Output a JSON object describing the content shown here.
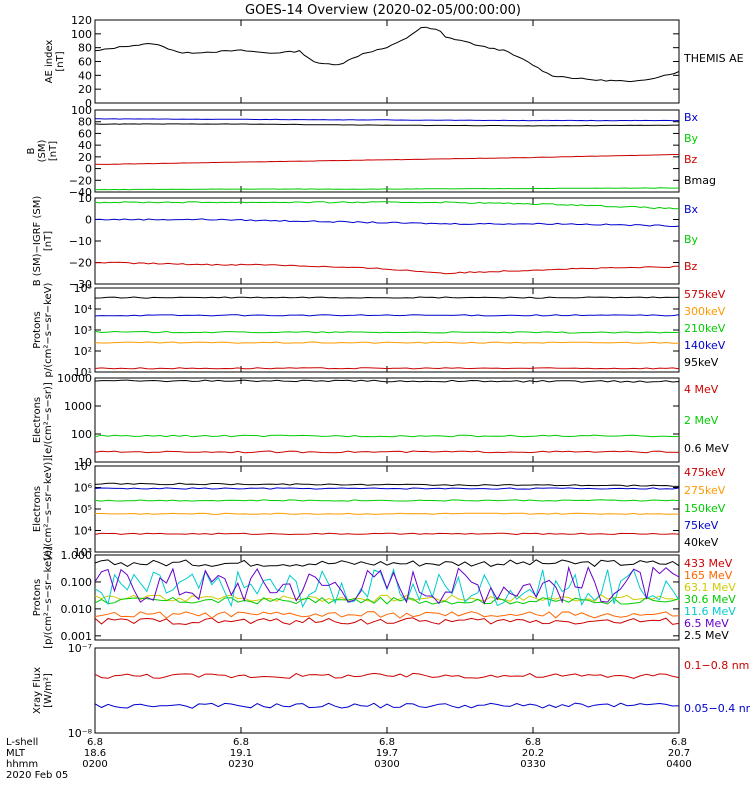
{
  "title": "GOES-14 Overview (2020-02-05/00:00:00)",
  "chart_data": [
    {
      "type": "line",
      "ylabel": [
        "AE index",
        "[nT]"
      ],
      "ylim": [
        0,
        120
      ],
      "yscale": "linear",
      "yticks": [
        "0",
        "20",
        "40",
        "60",
        "80",
        "100",
        "120"
      ],
      "series": [
        {
          "name": "THEMIS AE",
          "color": "#000000",
          "x": [
            0,
            0.05,
            0.1,
            0.15,
            0.2,
            0.25,
            0.3,
            0.35,
            0.38,
            0.42,
            0.46,
            0.5,
            0.53,
            0.56,
            0.59,
            0.6,
            0.63,
            0.66,
            0.7,
            0.74,
            0.78,
            0.82,
            0.86,
            0.9,
            0.92,
            0.96,
            1.0
          ],
          "y": [
            75,
            82,
            86,
            72,
            74,
            76,
            72,
            75,
            57,
            56,
            72,
            80,
            92,
            110,
            105,
            95,
            90,
            82,
            76,
            60,
            40,
            36,
            33,
            32,
            30,
            37,
            45
          ]
        }
      ]
    },
    {
      "type": "line",
      "ylabel": [
        "B",
        "(SM)",
        "[nT]"
      ],
      "ylim": [
        -40,
        100
      ],
      "yscale": "linear",
      "yticks": [
        "−40",
        "−20",
        "0",
        "20",
        "40",
        "60",
        "80",
        "100"
      ],
      "series": [
        {
          "name": "Bx",
          "color": "#0000cc",
          "x": [
            0,
            0.25,
            0.5,
            0.75,
            1.0
          ],
          "y": [
            85,
            84,
            83,
            82,
            82
          ]
        },
        {
          "name": "By",
          "color": "#00cc00",
          "x": [
            0,
            0.25,
            0.5,
            0.75,
            1.0
          ],
          "y": [
            -36,
            -35,
            -35,
            -34,
            -33
          ]
        },
        {
          "name": "Bz",
          "color": "#cc0000",
          "x": [
            0,
            0.25,
            0.5,
            0.75,
            1.0
          ],
          "y": [
            7,
            11,
            15,
            19,
            24
          ]
        },
        {
          "name": "Bmag",
          "color": "#000000",
          "x": [
            0,
            0.25,
            0.5,
            0.75,
            1.0
          ],
          "y": [
            76,
            76,
            74,
            73,
            74
          ]
        }
      ]
    },
    {
      "type": "line",
      "ylabel": [
        "B (SM)−IGRF (SM)",
        "[nT]"
      ],
      "ylim": [
        -30,
        10
      ],
      "yscale": "linear",
      "yticks": [
        "−30",
        "−20",
        "−10",
        "0",
        "10"
      ],
      "series": [
        {
          "name": "Bx",
          "color": "#0000cc",
          "x": [
            0,
            0.2,
            0.4,
            0.6,
            0.8,
            1.0
          ],
          "y": [
            0,
            0,
            -1,
            -2,
            -2,
            -3
          ]
        },
        {
          "name": "By",
          "color": "#00cc00",
          "x": [
            0,
            0.2,
            0.4,
            0.6,
            0.8,
            1.0
          ],
          "y": [
            8,
            8,
            8,
            8,
            7,
            5
          ]
        },
        {
          "name": "Bz",
          "color": "#cc0000",
          "x": [
            0,
            0.2,
            0.3,
            0.5,
            0.6,
            0.8,
            1.0
          ],
          "y": [
            -20,
            -21,
            -21,
            -23,
            -25,
            -23,
            -22
          ]
        }
      ]
    },
    {
      "type": "line",
      "ylabel": [
        "Protons",
        "p/(cm²−s−sr−keV)"
      ],
      "ylim": [
        10,
        100000
      ],
      "yscale": "log",
      "yticks": [
        "10¹",
        "10²",
        "10³",
        "10⁴",
        "10⁵"
      ],
      "series": [
        {
          "name": "575keV",
          "color": "#cc0000",
          "x": [
            0,
            1.0
          ],
          "y": [
            15,
            15
          ]
        },
        {
          "name": "300keV",
          "color": "#ff9900",
          "x": [
            0,
            1.0
          ],
          "y": [
            250,
            250
          ]
        },
        {
          "name": "210keV",
          "color": "#00cc00",
          "x": [
            0,
            1.0
          ],
          "y": [
            800,
            750
          ]
        },
        {
          "name": "140keV",
          "color": "#0000cc",
          "x": [
            0,
            1.0
          ],
          "y": [
            5000,
            5000
          ]
        },
        {
          "name": "95keV",
          "color": "#000000",
          "x": [
            0,
            1.0
          ],
          "y": [
            35000,
            35000
          ]
        }
      ]
    },
    {
      "type": "line",
      "ylabel": [
        "Electrons",
        "[e/(cm²−s−sr)]"
      ],
      "ylim": [
        10,
        10000
      ],
      "yscale": "log",
      "yticks": [
        "10",
        "100",
        "1000",
        "10000"
      ],
      "series": [
        {
          "name": "4 MeV",
          "color": "#cc0000",
          "x": [
            0,
            1.0
          ],
          "y": [
            23,
            23
          ]
        },
        {
          "name": "2 MeV",
          "color": "#00cc00",
          "x": [
            0,
            1.0
          ],
          "y": [
            85,
            85
          ]
        },
        {
          "name": "0.6 MeV",
          "color": "#000000",
          "x": [
            0,
            1.0
          ],
          "y": [
            8000,
            7500
          ]
        }
      ]
    },
    {
      "type": "line",
      "ylabel": [
        "Electrons",
        "[e/(cm²−s−sr−keV)]"
      ],
      "ylim": [
        1000,
        10000000
      ],
      "yscale": "log",
      "yticks": [
        "10³",
        "10⁴",
        "10⁵",
        "10⁶",
        "10⁷"
      ],
      "series": [
        {
          "name": "475keV",
          "color": "#cc0000",
          "x": [
            0,
            1.0
          ],
          "y": [
            7000,
            7000
          ]
        },
        {
          "name": "275keV",
          "color": "#ff9900",
          "x": [
            0,
            1.0
          ],
          "y": [
            60000,
            60000
          ]
        },
        {
          "name": "150keV",
          "color": "#00cc00",
          "x": [
            0,
            1.0
          ],
          "y": [
            250000,
            250000
          ]
        },
        {
          "name": "75keV",
          "color": "#0000cc",
          "x": [
            0,
            1.0
          ],
          "y": [
            900000,
            900000
          ]
        },
        {
          "name": "40keV",
          "color": "#000000",
          "x": [
            0,
            1.0
          ],
          "y": [
            1500000,
            1200000
          ]
        }
      ]
    },
    {
      "type": "line",
      "ylabel": [
        "Protons",
        "[p/(cm²−s−sr−keV)]"
      ],
      "ylim": [
        0.0007,
        1.0
      ],
      "yscale": "log",
      "yticks": [
        "0.001",
        "0.010",
        "0.100",
        "1.000"
      ],
      "series": [
        {
          "name": "433 MeV",
          "color": "#cc0000",
          "x": [
            0,
            1.0
          ],
          "y": [
            0.0035,
            0.0035
          ]
        },
        {
          "name": "165 MeV",
          "color": "#ff6600",
          "x": [
            0,
            1.0
          ],
          "y": [
            0.006,
            0.006
          ]
        },
        {
          "name": "63.1 MeV",
          "color": "#cccc00",
          "x": [
            0,
            1.0
          ],
          "y": [
            0.025,
            0.025
          ]
        },
        {
          "name": "30.6 MeV",
          "color": "#00cc00",
          "x": [
            0,
            1.0
          ],
          "y": [
            0.02,
            0.02
          ]
        },
        {
          "name": "11.6 MeV",
          "color": "#00cccc",
          "x": [
            0,
            1.0
          ],
          "y": [
            0.06,
            0.06
          ]
        },
        {
          "name": "6.5 MeV",
          "color": "#6600cc",
          "x": [
            0,
            1.0
          ],
          "y": [
            0.08,
            0.08
          ]
        },
        {
          "name": "2.5 MeV",
          "color": "#000000",
          "x": [
            0,
            1.0
          ],
          "y": [
            0.5,
            0.5
          ]
        }
      ]
    },
    {
      "type": "line",
      "ylabel": [
        "Xray Flux",
        "[W/m²]"
      ],
      "ylim": [
        1e-08,
        1e-07
      ],
      "yscale": "log",
      "yticks": [
        "10⁻⁸",
        "10⁻⁷"
      ],
      "series": [
        {
          "name": "0.1−0.8 nm",
          "color": "#cc0000",
          "x": [
            0,
            1.0
          ],
          "y": [
            4.7e-08,
            4.7e-08
          ]
        },
        {
          "name": "0.05−0.4 nm",
          "color": "#0000cc",
          "x": [
            0,
            1.0
          ],
          "y": [
            2.1e-08,
            2.1e-08
          ]
        }
      ]
    }
  ],
  "xaxis": {
    "row_labels": [
      "L-shell",
      "MLT",
      "hhmm",
      "2020 Feb 05"
    ],
    "ticks": [
      {
        "lshell": "6.8",
        "mlt": "18.6",
        "hhmm": "0200"
      },
      {
        "lshell": "6.8",
        "mlt": "19.1",
        "hhmm": "0230"
      },
      {
        "lshell": "6.8",
        "mlt": "19.7",
        "hhmm": "0300"
      },
      {
        "lshell": "6.8",
        "mlt": "20.2",
        "hhmm": "0330"
      },
      {
        "lshell": "6.8",
        "mlt": "20.7",
        "hhmm": "0400"
      }
    ]
  }
}
